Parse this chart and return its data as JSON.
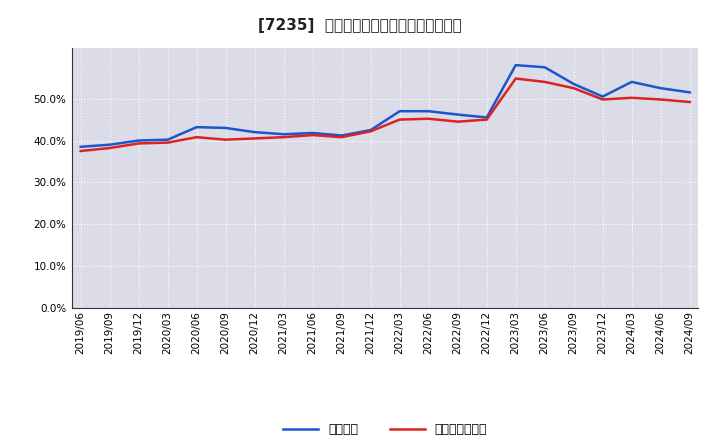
{
  "title": "[7235]  固定比率、固定長期適合率の推移",
  "x_labels": [
    "2019/06",
    "2019/09",
    "2019/12",
    "2020/03",
    "2020/06",
    "2020/09",
    "2020/12",
    "2021/03",
    "2021/06",
    "2021/09",
    "2021/12",
    "2022/03",
    "2022/06",
    "2022/09",
    "2022/12",
    "2023/03",
    "2023/06",
    "2023/09",
    "2023/12",
    "2024/03",
    "2024/06",
    "2024/09"
  ],
  "fixed_ratio": [
    0.385,
    0.39,
    0.4,
    0.402,
    0.432,
    0.43,
    0.42,
    0.415,
    0.418,
    0.412,
    0.425,
    0.47,
    0.47,
    0.462,
    0.455,
    0.58,
    0.575,
    0.535,
    0.505,
    0.54,
    0.525,
    0.515
  ],
  "fixed_long_ratio": [
    0.375,
    0.382,
    0.393,
    0.395,
    0.408,
    0.402,
    0.405,
    0.408,
    0.413,
    0.408,
    0.422,
    0.45,
    0.452,
    0.445,
    0.45,
    0.548,
    0.54,
    0.525,
    0.498,
    0.502,
    0.498,
    0.492
  ],
  "line_color_blue": "#1a56cc",
  "line_color_red": "#dd2222",
  "background_color": "#ffffff",
  "plot_bg_color": "#dcdce8",
  "grid_color": "#ffffff",
  "ylim": [
    0.0,
    0.62
  ],
  "yticks": [
    0.0,
    0.1,
    0.2,
    0.3,
    0.4,
    0.5
  ],
  "legend_blue": "固定比率",
  "legend_red": "固定長期適合率",
  "title_fontsize": 11,
  "tick_fontsize": 7.5,
  "legend_fontsize": 9
}
